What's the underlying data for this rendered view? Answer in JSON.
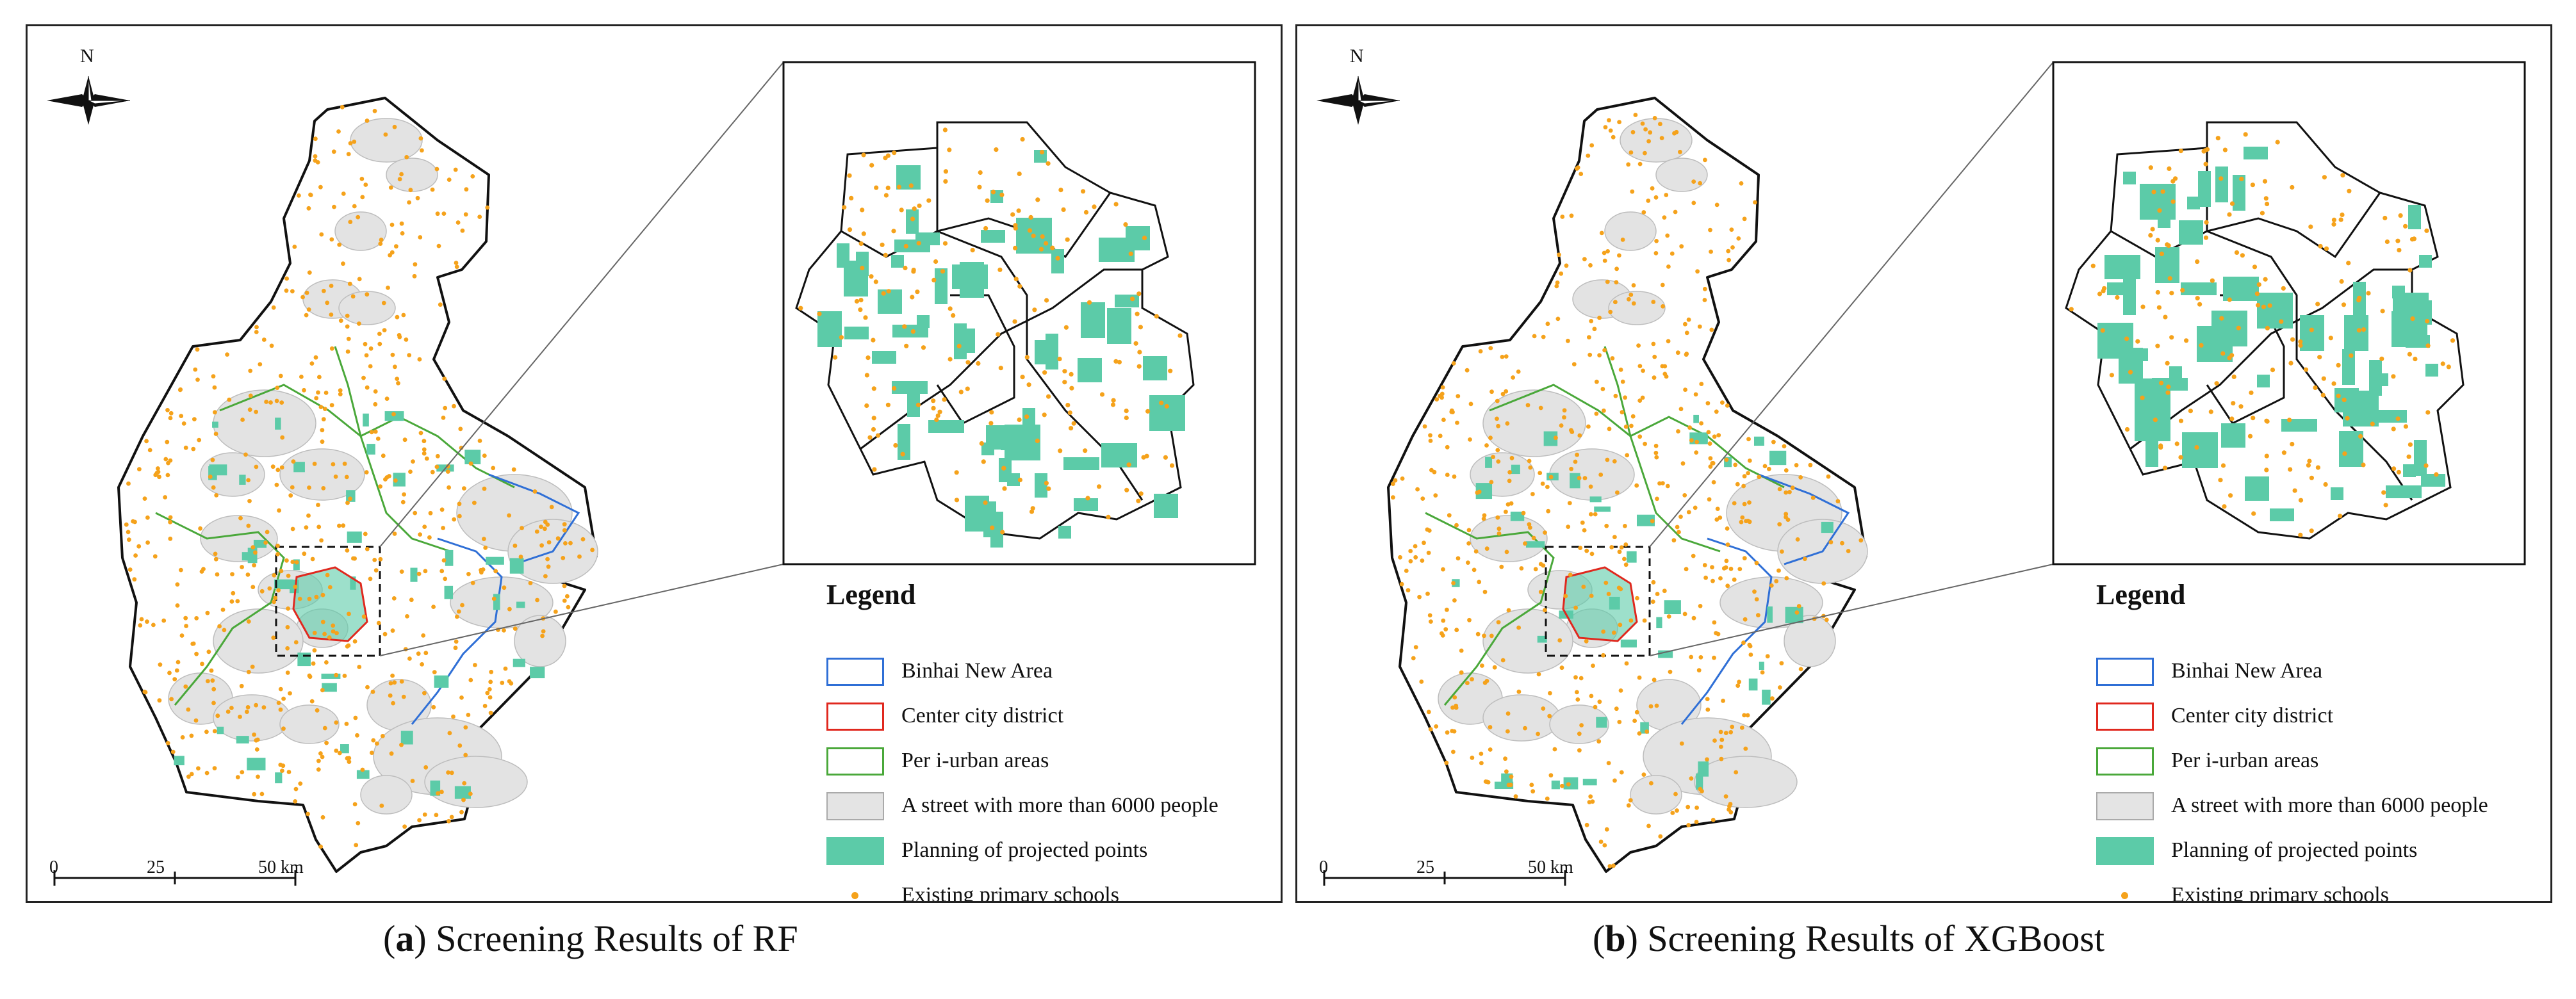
{
  "panels": [
    {
      "id": "a",
      "caption_letter": "a",
      "caption_text": ") Screening Results of RF",
      "north_label": "N",
      "scale_ticks": [
        "0",
        "25",
        "50 km"
      ],
      "legend_title": "Legend",
      "legend_items": [
        {
          "label": "Binhai New Area",
          "color": "#2f6fd6",
          "kind": "outline"
        },
        {
          "label": "Center city district",
          "color": "#e0281e",
          "kind": "outline"
        },
        {
          "label": "Per i-urban areas",
          "color": "#4aa83a",
          "kind": "outline"
        },
        {
          "label": "A street with more than 6000 people",
          "color": "#e4e4e4",
          "kind": "fill-gray"
        },
        {
          "label": "Planning of projected points",
          "color": "#5ccba8",
          "kind": "fill"
        },
        {
          "label": "Existing primary schools",
          "color": "#f5a21b",
          "kind": "dot"
        }
      ]
    },
    {
      "id": "b",
      "caption_letter": "b",
      "caption_text": ") Screening Results of XGBoost",
      "north_label": "N",
      "scale_ticks": [
        "0",
        "25",
        "50 km"
      ],
      "legend_title": "Legend",
      "legend_items": [
        {
          "label": "Binhai New Area",
          "color": "#2f6fd6",
          "kind": "outline"
        },
        {
          "label": "Center city district",
          "color": "#e0281e",
          "kind": "outline"
        },
        {
          "label": "Per i-urban areas",
          "color": "#4aa83a",
          "kind": "outline"
        },
        {
          "label": "A street with more than 6000 people",
          "color": "#e4e4e4",
          "kind": "fill-gray"
        },
        {
          "label": "Planning of projected points",
          "color": "#5ccba8",
          "kind": "fill"
        },
        {
          "label": "Existing primary schools",
          "color": "#f5a21b",
          "kind": "dot"
        }
      ]
    }
  ]
}
